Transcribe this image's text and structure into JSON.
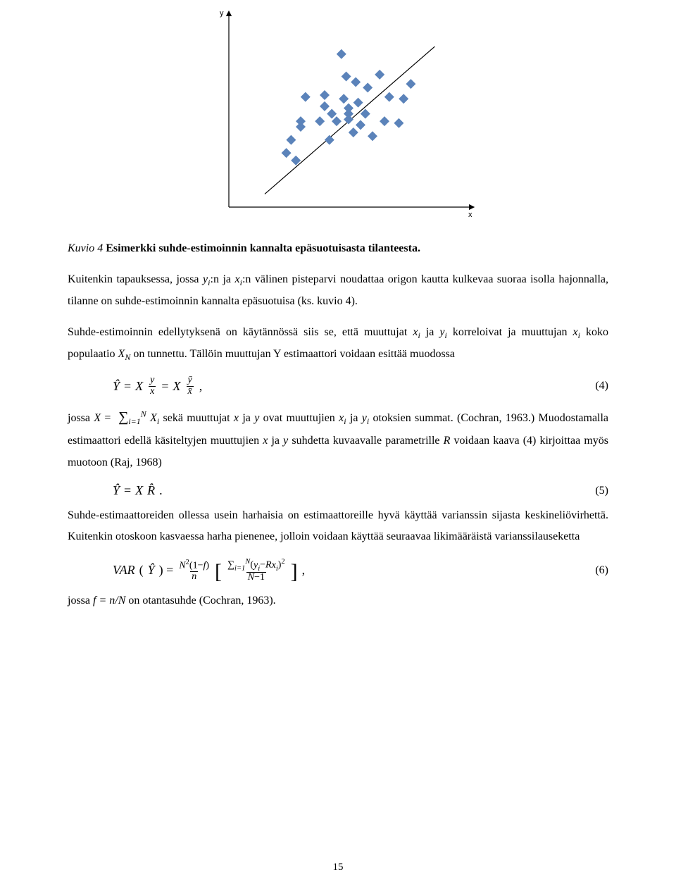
{
  "chart": {
    "type": "scatter",
    "x_label": "x",
    "y_label": "y",
    "marker_color": "#5b83ba",
    "marker_size": 14,
    "axis_color": "#000000",
    "line_color": "#000000",
    "line_width": 1.2,
    "background": "#ffffff",
    "x_range": [
      0,
      10
    ],
    "y_range": [
      0,
      10
    ],
    "points": [
      [
        2.4,
        2.9
      ],
      [
        2.6,
        3.6
      ],
      [
        2.8,
        2.5
      ],
      [
        3.0,
        4.3
      ],
      [
        3.0,
        4.6
      ],
      [
        3.2,
        5.9
      ],
      [
        3.8,
        4.6
      ],
      [
        4.0,
        6.0
      ],
      [
        4.0,
        5.4
      ],
      [
        4.2,
        3.6
      ],
      [
        4.3,
        5.0
      ],
      [
        4.5,
        4.6
      ],
      [
        4.7,
        8.2
      ],
      [
        4.8,
        5.8
      ],
      [
        4.9,
        7.0
      ],
      [
        5.0,
        5.3
      ],
      [
        5.0,
        5.0
      ],
      [
        5.0,
        4.7
      ],
      [
        5.2,
        4.0
      ],
      [
        5.3,
        6.7
      ],
      [
        5.4,
        5.6
      ],
      [
        5.5,
        4.4
      ],
      [
        5.7,
        5.0
      ],
      [
        5.8,
        6.4
      ],
      [
        6.0,
        3.8
      ],
      [
        6.3,
        7.1
      ],
      [
        6.5,
        4.6
      ],
      [
        6.7,
        5.9
      ],
      [
        7.1,
        4.5
      ],
      [
        7.3,
        5.8
      ],
      [
        7.6,
        6.6
      ]
    ],
    "trend_line": {
      "x1": 1.5,
      "y1": 0.7,
      "x2": 8.6,
      "y2": 8.6
    }
  },
  "caption": {
    "kuvio": "Kuvio 4 ",
    "title": "Esimerkki suhde-estimoinnin kannalta epäsuotuisasta tilanteesta."
  },
  "para1a": "Kuitenkin tapauksessa, jossa ",
  "para1b": ":n ja ",
  "para1c": ":n välinen pisteparvi noudattaa origon kautta kulkevaa suoraa isolla hajonnalla, tilanne on suhde-estimoinnin kannalta epäsuotuisa (ks. kuvio 4).",
  "para2a": "Suhde-estimoinnin edellytyksenä on käytännössä siis se, että muuttujat ",
  "para2b": " ja ",
  "para2c": " korreloivat ja muuttujan ",
  "para2d": " koko populaatio ",
  "para2e": " on tunnettu. Tällöin muuttujan Y estimaattori voidaan esittää muodossa",
  "eq4_num": "(4)",
  "para3a": "jossa ",
  "para3b": " sekä muuttujat ",
  "para3c": " ja ",
  "para3d": " ovat muuttujien ",
  "para3e": " ja ",
  "para3f": " otoksien summat. (Cochran, 1963.) Muodostamalla estimaattori edellä käsiteltyjen muuttujien ",
  "para3g": " ja ",
  "para3h": " suhdetta kuvaavalle parametrille ",
  "para3i": " voidaan kaava (4) kirjoittaa myös muotoon (Raj, 1968)",
  "eq5_num": "(5)",
  "para4": "Suhde-estimaattoreiden ollessa usein harhaisia on estimaattoreille hyvä käyttää varianssin sijasta keskineliövirhettä. Kuitenkin otoskoon kasvaessa harha pienenee, jolloin voidaan käyttää seuraavaa likimääräistä varianssilauseketta",
  "eq6_num": "(6)",
  "para5a": "jossa ",
  "para5b": " on otantasuhde (Cochran, 1963).",
  "page_number": "15",
  "sym": {
    "y_i": "y",
    "x_i": "x",
    "X_N": "X",
    "N_sub": "N",
    "ital_x": "x",
    "ital_y": "y",
    "ital_R": "R",
    "fnN": "f = n/N"
  }
}
